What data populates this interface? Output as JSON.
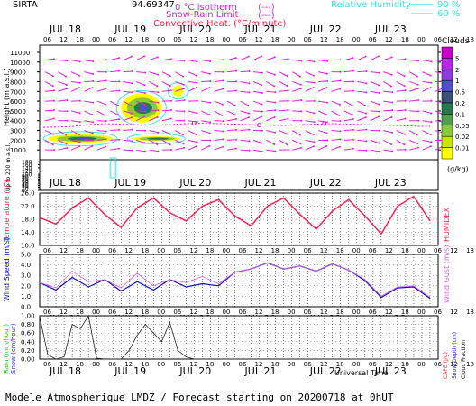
{
  "header": {
    "station": "SIRTA",
    "coords": "94.69347",
    "legend_0c": "0 °C isotherm",
    "legend_snow_rain": "Snow-Rain Limit",
    "legend_convective": "Convective Heat. (°C/minute)",
    "rh_label": "Relative Humidity",
    "rh_90": "90 %",
    "rh_60": "60 %"
  },
  "time_axis": {
    "days": [
      "JUL 18",
      "JUL 19",
      "JUL 20",
      "JUL 21",
      "JUL 22",
      "JUL 23"
    ],
    "hours": [
      "06",
      "12",
      "18",
      "00",
      "06",
      "12",
      "18",
      "00",
      "06",
      "12",
      "18",
      "00",
      "06",
      "12",
      "18",
      "00",
      "06",
      "12",
      "18",
      "00",
      "06",
      "12",
      "18",
      "00",
      "06",
      "12",
      "18"
    ],
    "xlabel": "Universal Time"
  },
  "footer": "Modele Atmospherique LMDZ / Forecast starting on 20200718 at 0hUT",
  "colors": {
    "wind_arrow": "#e020e0",
    "temperature": "#ff2050",
    "humidex": "#ff2050",
    "wind_speed": "#1010c0",
    "wind_gust": "#e060e0",
    "precip": "#202020",
    "rh": "#40e0e0"
  },
  "chart_data": [
    {
      "type": "heatmap",
      "title": "",
      "ylabel": "Height (m a.s.l.)",
      "ylabel_low": "Up to 200 m a.s.l.",
      "yticks_upper": [
        1000,
        2000,
        3000,
        4000,
        5000,
        6000,
        7000,
        8000,
        9000,
        10000,
        11000
      ],
      "yticks_lower": [
        0,
        10,
        20,
        30,
        40,
        50,
        60,
        70,
        80,
        90,
        100,
        120,
        140,
        160,
        180
      ],
      "colorbar": {
        "label": "Clouds",
        "unit": "(g/kg)",
        "levels": [
          "0.01",
          "0.02",
          "0.05",
          "0.1",
          "0.2",
          "0.5",
          "1",
          "2",
          "5"
        ],
        "colors": [
          "#ffff00",
          "#c8e600",
          "#8cc83c",
          "#50a050",
          "#287850",
          "#3c5078",
          "#5050c8",
          "#8c3cdc",
          "#b428e6",
          "#c800c8"
        ]
      },
      "isotherm_0c_height_m": [
        3300,
        3350,
        3400,
        3600,
        3700,
        3650,
        3600,
        3550,
        3600,
        3700,
        3750,
        3700,
        3650,
        3600,
        3550,
        3500,
        3600,
        3650,
        3700,
        3650,
        3600,
        3550,
        3500,
        3450,
        3400
      ],
      "cloud_regions": [
        {
          "x_hours": [
            6,
            30
          ],
          "height_m": [
            1700,
            2600
          ],
          "max_level": "0.5"
        },
        {
          "x_hours": [
            33,
            48
          ],
          "height_m": [
            3800,
            6800
          ],
          "max_level": "1"
        },
        {
          "x_hours": [
            52,
            56
          ],
          "height_m": [
            6500,
            7600
          ],
          "max_level": "0.02"
        },
        {
          "x_hours": [
            37,
            55
          ],
          "height_m": [
            1900,
            2400
          ],
          "max_level": "0.2"
        }
      ]
    },
    {
      "type": "line",
      "ylabel": "Temperature (°C)",
      "ylabel_right": "HUMIDEX",
      "yticks": [
        "10.0",
        "14.0",
        "18.0",
        "22.0",
        "26.0"
      ],
      "ylim": [
        10,
        26
      ],
      "x_hours": [
        0,
        6,
        12,
        18,
        24,
        30,
        36,
        42,
        48,
        54,
        60,
        66,
        72,
        78,
        84,
        90,
        96,
        102,
        108,
        114,
        120,
        126,
        132,
        138,
        144
      ],
      "series": [
        {
          "name": "",
          "values": [
            18.5,
            16.5,
            21.5,
            24.5,
            19.5,
            15.5,
            21.5,
            24.5,
            20.0,
            17.5,
            22.0,
            24.0,
            19.0,
            16.0,
            22.0,
            24.5,
            19.5,
            15.0,
            20.5,
            24.0,
            19.0,
            13.5,
            22.0,
            25.0,
            17.5
          ]
        }
      ]
    },
    {
      "type": "line",
      "ylabel": "Wind Speed (m/s)",
      "ylabel_right": "Wind Gust (m/s)",
      "yticks": [
        "0.0",
        "1.0",
        "2.0",
        "3.0",
        "4.0",
        "5.0"
      ],
      "ylim": [
        0,
        5
      ],
      "x_hours": [
        0,
        6,
        12,
        18,
        24,
        30,
        36,
        42,
        48,
        54,
        60,
        66,
        72,
        78,
        84,
        90,
        96,
        102,
        108,
        114,
        120,
        126,
        132,
        138,
        144
      ],
      "series": [
        {
          "name": "",
          "values": [
            2.3,
            1.6,
            2.8,
            1.9,
            2.6,
            1.5,
            2.4,
            1.6,
            2.6,
            1.9,
            2.2,
            2.0,
            3.3,
            3.6,
            4.2,
            3.6,
            3.9,
            3.4,
            4.1,
            3.5,
            2.5,
            0.9,
            1.8,
            1.9,
            0.8
          ]
        },
        {
          "name": "",
          "values": [
            2.3,
            1.8,
            3.4,
            2.4,
            2.6,
            1.8,
            3.2,
            2.0,
            2.6,
            2.3,
            2.9,
            2.2,
            3.3,
            3.6,
            4.2,
            3.6,
            3.9,
            3.4,
            4.1,
            3.5,
            2.6,
            1.0,
            1.9,
            2.0,
            0.9
          ]
        }
      ]
    },
    {
      "type": "line",
      "ylabel": "Rain (mm/hour)",
      "ylabel2": "Snow (cm/hour)",
      "ylabel_right": "CAPE (J/g)",
      "ylabel_right2": "Snow Depth (cm)",
      "ylabel_right3": "Cloud Fraction",
      "yticks": [
        "0.00",
        "0.20",
        "0.40",
        "0.60",
        "0.80",
        "1.00"
      ],
      "ylim": [
        0,
        1
      ],
      "x_hours": [
        0,
        3,
        6,
        9,
        12,
        15,
        18,
        21,
        24,
        27,
        30,
        33,
        36,
        39,
        42,
        45,
        48,
        51,
        54,
        57,
        60,
        66,
        72,
        144
      ],
      "series": [
        {
          "name": "",
          "values": [
            0.98,
            0.1,
            0.0,
            0.05,
            0.8,
            0.7,
            1.0,
            0.02,
            0.0,
            0.0,
            0.0,
            0.2,
            0.55,
            0.8,
            0.6,
            0.4,
            0.85,
            0.2,
            0.05,
            0.0,
            0.0,
            0.0,
            0.0,
            0.0
          ]
        }
      ]
    }
  ]
}
